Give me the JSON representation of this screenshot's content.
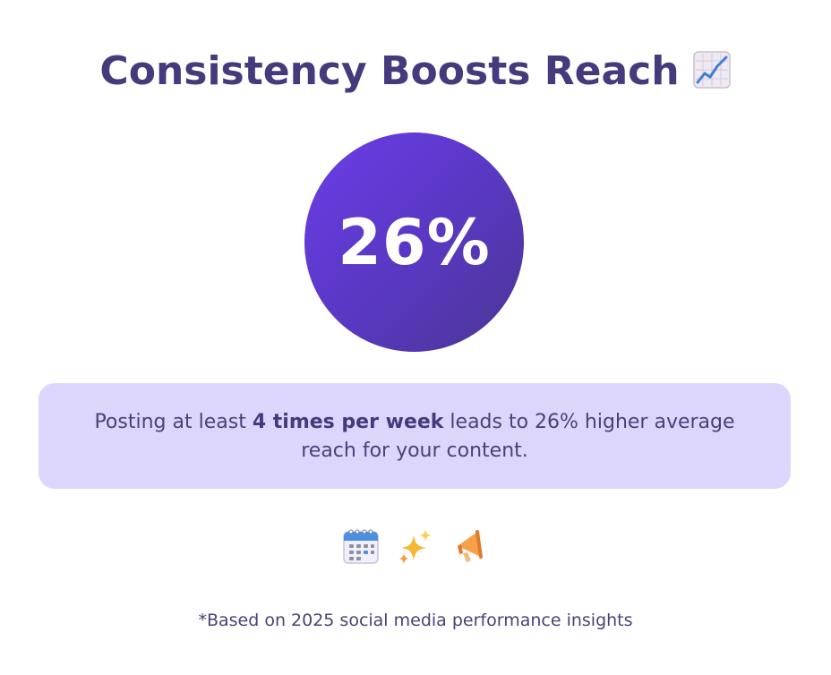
{
  "header": {
    "title": "Consistency Boosts Reach",
    "title_icon": "chart-increasing-icon"
  },
  "stat": {
    "value": "26%",
    "gradient_start": "#6b3de8",
    "gradient_end": "#4a3694"
  },
  "callout": {
    "text_before": "Posting at least ",
    "text_bold": "4 times per week",
    "text_after": " leads to 26% higher average reach for your content.",
    "background": "#dcd6fd"
  },
  "icons": [
    "calendar-icon",
    "sparkles-icon",
    "megaphone-icon"
  ],
  "footnote": "*Based on 2025 social media performance insights"
}
